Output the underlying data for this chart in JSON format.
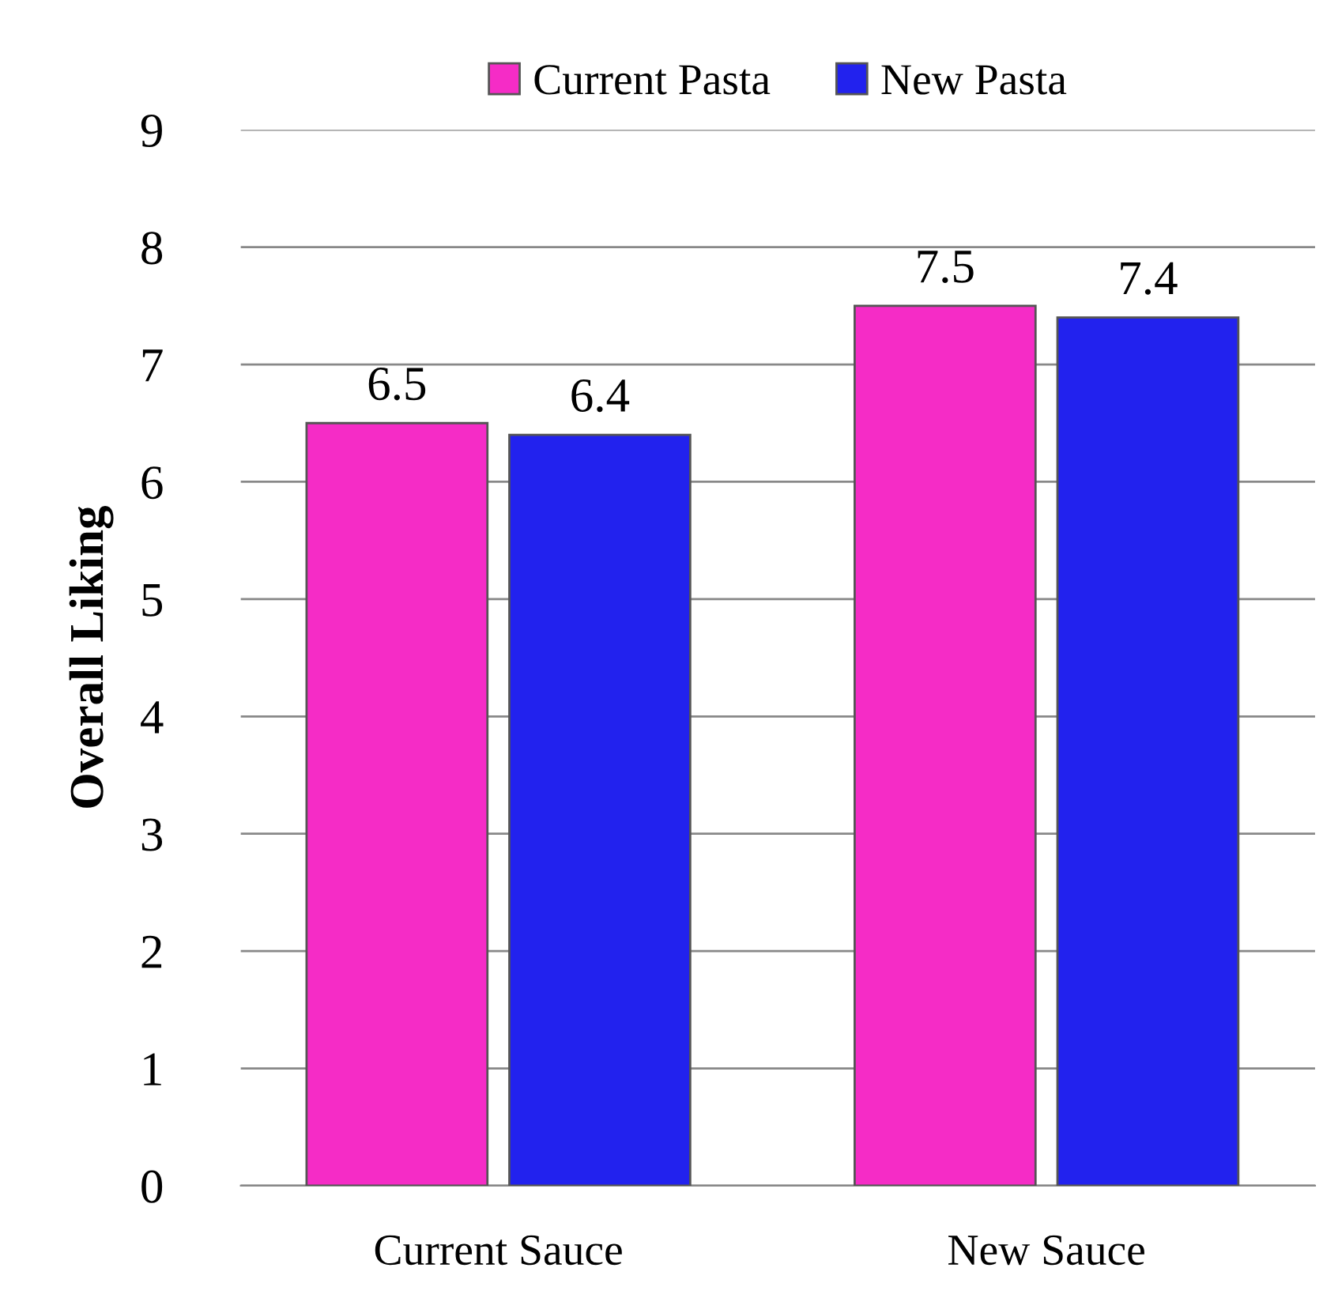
{
  "chart_data": {
    "type": "bar",
    "ylabel": "Overall Liking",
    "categories": [
      "Current Sauce",
      "New Sauce"
    ],
    "series": [
      {
        "name": "Current Pasta",
        "color": "#f52cc6",
        "values": [
          6.5,
          7.5
        ]
      },
      {
        "name": "New Pasta",
        "color": "#2222ee",
        "values": [
          6.4,
          7.4
        ]
      }
    ],
    "ylim": [
      0,
      9
    ],
    "yticks": [
      0,
      1,
      2,
      3,
      4,
      5,
      6,
      7,
      8,
      9
    ],
    "grid": "y",
    "legend": "top",
    "data_labels": true
  }
}
